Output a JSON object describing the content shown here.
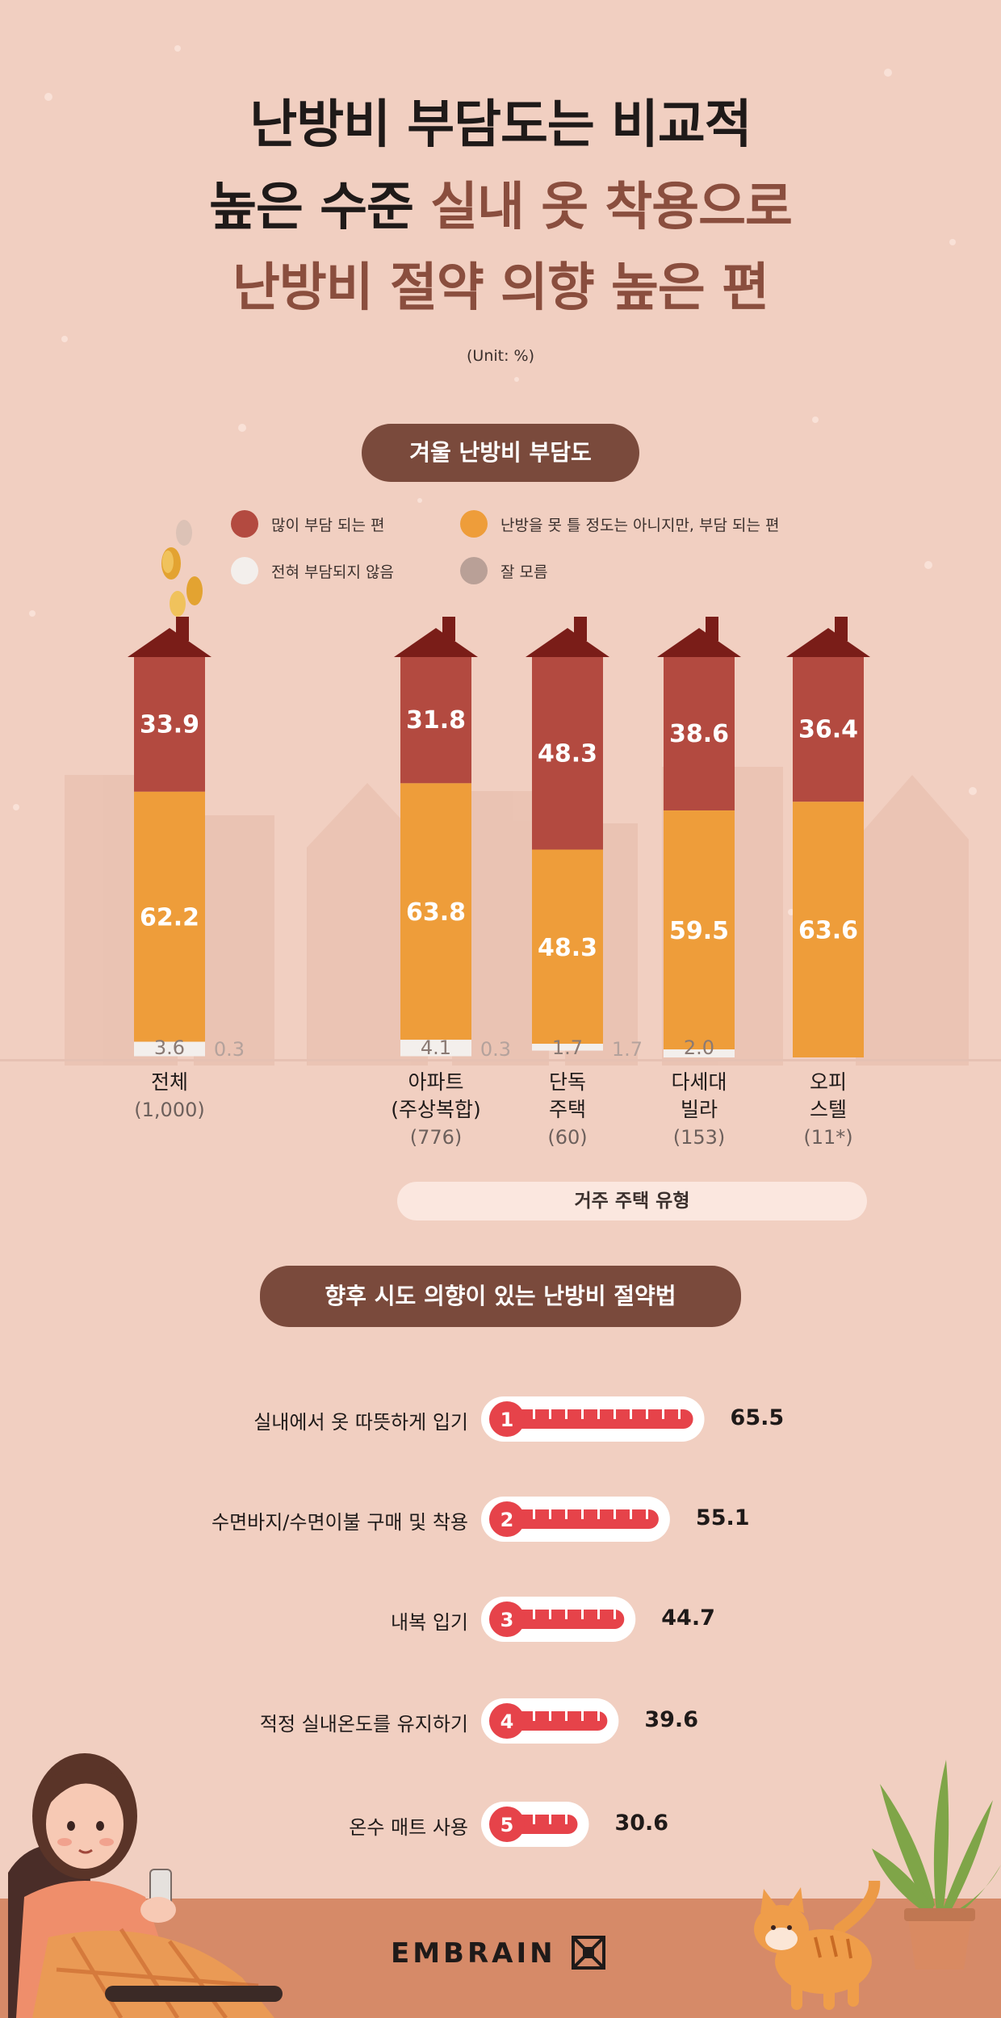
{
  "title": {
    "line1": "난방비 부담도는 비교적",
    "line2_a": "높은 수준 ",
    "line2_b": "실내 옷 착용으로",
    "line3": "난방비 절약 의향 높은 편"
  },
  "unit_note": "(Unit: %)",
  "section1_title": "겨울 난방비 부담도",
  "section2_title": "향후 시도 의향이 있는 난방비 절약법",
  "house_type_label": "거주 주택 유형",
  "logo": "EMBRAIN",
  "colors": {
    "very_burdened": "#b34a40",
    "somewhat_burdened": "#ee9d3a",
    "not_burdened": "#f3efec",
    "dont_know": "#b9a097",
    "roof": "#7a1d18",
    "thermo_red": "#e6434a"
  },
  "chart_data": [
    {
      "type": "bar",
      "stacked": true,
      "title": "겨울 난방비 부담도",
      "legend": [
        {
          "key": "very_burdened",
          "label": "많이 부담 되는 편"
        },
        {
          "key": "somewhat_burdened",
          "label": "난방을 못 틀 정도는 아니지만, 부담 되는 편"
        },
        {
          "key": "not_burdened",
          "label": "전혀 부담되지 않음"
        },
        {
          "key": "dont_know",
          "label": "잘 모름"
        }
      ],
      "categories": [
        {
          "name": [
            "전체"
          ],
          "n": "(1,000)",
          "very_burdened": 33.9,
          "somewhat_burdened": 62.2,
          "not_burdened": 3.6,
          "dont_know": 0.3,
          "labels": {
            "very_burdened": "33.9",
            "somewhat_burdened": "62.2",
            "not_burdened": "3.6",
            "dont_know": "0.3"
          }
        },
        {
          "name": [
            "아파트",
            "(주상복합)"
          ],
          "n": "(776)",
          "very_burdened": 31.8,
          "somewhat_burdened": 63.8,
          "not_burdened": 4.1,
          "dont_know": 0.3,
          "labels": {
            "very_burdened": "31.8",
            "somewhat_burdened": "63.8",
            "not_burdened": "4.1",
            "dont_know": "0.3"
          }
        },
        {
          "name": [
            "단독",
            "주택"
          ],
          "n": "(60)",
          "very_burdened": 48.3,
          "somewhat_burdened": 48.3,
          "not_burdened": 1.7,
          "dont_know": 1.7,
          "labels": {
            "very_burdened": "48.3",
            "somewhat_burdened": "48.3",
            "not_burdened": "1.7",
            "dont_know": "1.7"
          }
        },
        {
          "name": [
            "다세대",
            "빌라"
          ],
          "n": "(153)",
          "very_burdened": 38.6,
          "somewhat_burdened": 59.5,
          "not_burdened": 2.0,
          "dont_know": 0,
          "labels": {
            "very_burdened": "38.6",
            "somewhat_burdened": "59.5",
            "not_burdened": "2.0"
          }
        },
        {
          "name": [
            "오피",
            "스텔"
          ],
          "n": "(11*)",
          "very_burdened": 36.4,
          "somewhat_burdened": 63.6,
          "not_burdened": 0,
          "dont_know": 0,
          "labels": {
            "very_burdened": "36.4",
            "somewhat_burdened": "63.6"
          }
        }
      ],
      "ylim": [
        0,
        100
      ]
    },
    {
      "type": "bar",
      "orientation": "horizontal",
      "title": "향후 시도 의향이 있는 난방비 절약법",
      "items": [
        {
          "rank": "1",
          "label": "실내에서 옷 따뜻하게 입기",
          "value": 65.5,
          "value_label": "65.5"
        },
        {
          "rank": "2",
          "label": "수면바지/수면이불 구매 및 착용",
          "value": 55.1,
          "value_label": "55.1"
        },
        {
          "rank": "3",
          "label": "내복 입기",
          "value": 44.7,
          "value_label": "44.7"
        },
        {
          "rank": "4",
          "label": "적정 실내온도를 유지하기",
          "value": 39.6,
          "value_label": "39.6"
        },
        {
          "rank": "5",
          "label": "온수 매트 사용",
          "value": 30.6,
          "value_label": "30.6"
        }
      ]
    }
  ]
}
